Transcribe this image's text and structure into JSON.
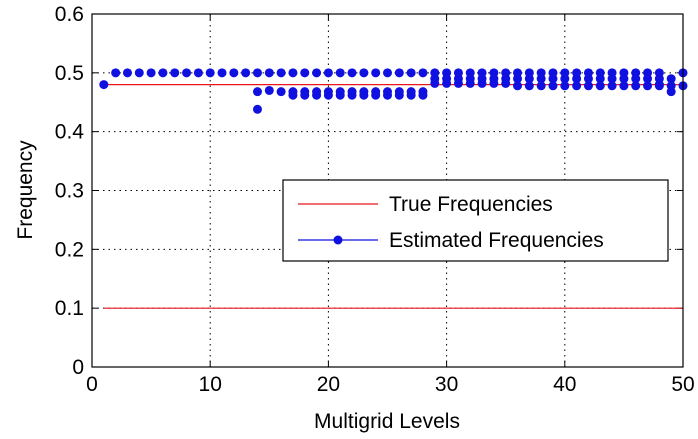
{
  "chart_data": {
    "type": "scatter",
    "xlabel": "Multigrid Levels",
    "ylabel": "Frequency",
    "xlim": [
      0,
      50
    ],
    "ylim": [
      0,
      0.6
    ],
    "xticks": [
      0,
      10,
      20,
      30,
      40,
      50
    ],
    "yticks": [
      0,
      0.1,
      0.2,
      0.3,
      0.4,
      0.5,
      0.6
    ],
    "xtick_labels": [
      "0",
      "10",
      "20",
      "30",
      "40",
      "50"
    ],
    "ytick_labels": [
      "0",
      "0.1",
      "0.2",
      "0.3",
      "0.4",
      "0.5",
      "0.6"
    ],
    "grid": true,
    "legend_position": "center-right",
    "series": [
      {
        "name": "True Frequencies",
        "style": "line",
        "color": "#e8171f",
        "segments": [
          {
            "x": [
              1,
              50
            ],
            "y": [
              0.48,
              0.48
            ]
          },
          {
            "x": [
              1,
              50
            ],
            "y": [
              0.1,
              0.1
            ]
          }
        ]
      },
      {
        "name": "Estimated Frequencies",
        "style": "markers",
        "color": "#1010e0",
        "points": [
          [
            1,
            0.48
          ],
          [
            2,
            0.5
          ],
          [
            3,
            0.5
          ],
          [
            4,
            0.5
          ],
          [
            5,
            0.5
          ],
          [
            6,
            0.5
          ],
          [
            7,
            0.5
          ],
          [
            8,
            0.5
          ],
          [
            9,
            0.5
          ],
          [
            10,
            0.5
          ],
          [
            11,
            0.5
          ],
          [
            12,
            0.5
          ],
          [
            13,
            0.5
          ],
          [
            14,
            0.5
          ],
          [
            14,
            0.468
          ],
          [
            14,
            0.438
          ],
          [
            15,
            0.5
          ],
          [
            15,
            0.47
          ],
          [
            16,
            0.5
          ],
          [
            16,
            0.468
          ],
          [
            17,
            0.5
          ],
          [
            17,
            0.468
          ],
          [
            17,
            0.462
          ],
          [
            18,
            0.5
          ],
          [
            18,
            0.468
          ],
          [
            18,
            0.462
          ],
          [
            19,
            0.5
          ],
          [
            19,
            0.468
          ],
          [
            19,
            0.462
          ],
          [
            20,
            0.5
          ],
          [
            20,
            0.468
          ],
          [
            20,
            0.462
          ],
          [
            21,
            0.5
          ],
          [
            21,
            0.468
          ],
          [
            21,
            0.462
          ],
          [
            22,
            0.5
          ],
          [
            22,
            0.468
          ],
          [
            22,
            0.462
          ],
          [
            23,
            0.5
          ],
          [
            23,
            0.468
          ],
          [
            23,
            0.462
          ],
          [
            24,
            0.5
          ],
          [
            24,
            0.468
          ],
          [
            24,
            0.462
          ],
          [
            25,
            0.5
          ],
          [
            25,
            0.468
          ],
          [
            25,
            0.462
          ],
          [
            26,
            0.5
          ],
          [
            26,
            0.468
          ],
          [
            26,
            0.462
          ],
          [
            27,
            0.5
          ],
          [
            27,
            0.468
          ],
          [
            27,
            0.462
          ],
          [
            28,
            0.5
          ],
          [
            28,
            0.468
          ],
          [
            28,
            0.462
          ],
          [
            29,
            0.5
          ],
          [
            29,
            0.49
          ],
          [
            29,
            0.482
          ],
          [
            30,
            0.5
          ],
          [
            30,
            0.49
          ],
          [
            30,
            0.482
          ],
          [
            31,
            0.5
          ],
          [
            31,
            0.49
          ],
          [
            31,
            0.482
          ],
          [
            32,
            0.5
          ],
          [
            32,
            0.49
          ],
          [
            32,
            0.482
          ],
          [
            33,
            0.5
          ],
          [
            33,
            0.49
          ],
          [
            33,
            0.482
          ],
          [
            34,
            0.5
          ],
          [
            34,
            0.49
          ],
          [
            34,
            0.482
          ],
          [
            35,
            0.5
          ],
          [
            35,
            0.49
          ],
          [
            35,
            0.482
          ],
          [
            36,
            0.5
          ],
          [
            36,
            0.49
          ],
          [
            36,
            0.478
          ],
          [
            37,
            0.5
          ],
          [
            37,
            0.49
          ],
          [
            37,
            0.478
          ],
          [
            38,
            0.5
          ],
          [
            38,
            0.49
          ],
          [
            38,
            0.478
          ],
          [
            39,
            0.5
          ],
          [
            39,
            0.49
          ],
          [
            39,
            0.478
          ],
          [
            40,
            0.5
          ],
          [
            40,
            0.49
          ],
          [
            40,
            0.478
          ],
          [
            41,
            0.5
          ],
          [
            41,
            0.49
          ],
          [
            41,
            0.478
          ],
          [
            42,
            0.5
          ],
          [
            42,
            0.49
          ],
          [
            42,
            0.478
          ],
          [
            43,
            0.5
          ],
          [
            43,
            0.49
          ],
          [
            43,
            0.478
          ],
          [
            44,
            0.5
          ],
          [
            44,
            0.49
          ],
          [
            44,
            0.478
          ],
          [
            45,
            0.5
          ],
          [
            45,
            0.49
          ],
          [
            45,
            0.478
          ],
          [
            46,
            0.5
          ],
          [
            46,
            0.49
          ],
          [
            46,
            0.478
          ],
          [
            47,
            0.5
          ],
          [
            47,
            0.49
          ],
          [
            47,
            0.478
          ],
          [
            48,
            0.5
          ],
          [
            48,
            0.49
          ],
          [
            48,
            0.48
          ],
          [
            48,
            0.478
          ],
          [
            49,
            0.49
          ],
          [
            49,
            0.478
          ],
          [
            49,
            0.468
          ],
          [
            50,
            0.5
          ],
          [
            50,
            0.478
          ]
        ]
      }
    ]
  }
}
